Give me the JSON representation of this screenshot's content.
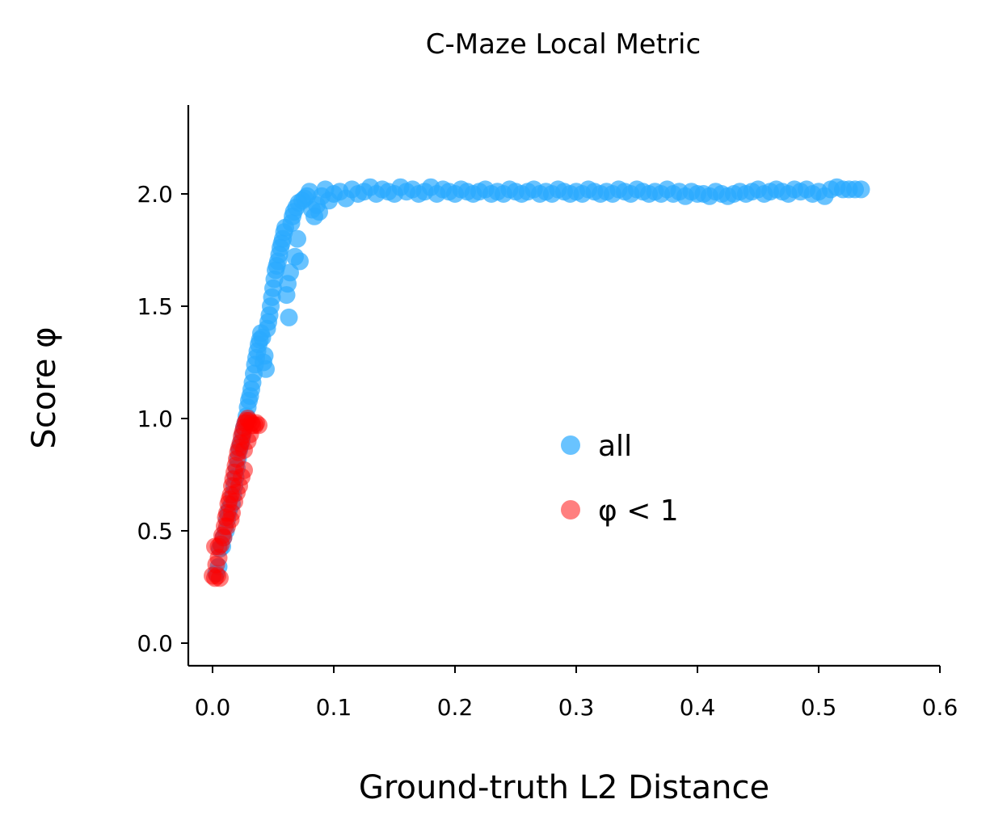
{
  "chart_data": {
    "type": "scatter",
    "title": "C-Maze Local Metric",
    "xlabel": "Ground-truth L2 Distance",
    "ylabel": "Score φ",
    "xlim": [
      -0.02,
      0.6
    ],
    "ylim": [
      -0.1,
      2.4
    ],
    "xticks": [
      "0.0",
      "0.1",
      "0.2",
      "0.3",
      "0.4",
      "0.5",
      "0.6"
    ],
    "yticks": [
      "0.0",
      "0.5",
      "1.0",
      "1.5",
      "2.0"
    ],
    "grid": false,
    "legend_position": "center-right",
    "series": [
      {
        "name": "all",
        "color": "#29aaff",
        "alpha": 0.7,
        "points": [
          [
            0.003,
            0.31
          ],
          [
            0.005,
            0.34
          ],
          [
            0.006,
            0.42
          ],
          [
            0.008,
            0.43
          ],
          [
            0.009,
            0.47
          ],
          [
            0.011,
            0.5
          ],
          [
            0.012,
            0.55
          ],
          [
            0.013,
            0.58
          ],
          [
            0.014,
            0.6
          ],
          [
            0.016,
            0.62
          ],
          [
            0.017,
            0.66
          ],
          [
            0.018,
            0.7
          ],
          [
            0.019,
            0.74
          ],
          [
            0.02,
            0.78
          ],
          [
            0.021,
            0.82
          ],
          [
            0.022,
            0.86
          ],
          [
            0.023,
            0.88
          ],
          [
            0.024,
            0.9
          ],
          [
            0.025,
            0.93
          ],
          [
            0.026,
            0.96
          ],
          [
            0.027,
            0.98
          ],
          [
            0.028,
            1.01
          ],
          [
            0.029,
            1.05
          ],
          [
            0.03,
            1.08
          ],
          [
            0.031,
            1.1
          ],
          [
            0.032,
            1.13
          ],
          [
            0.033,
            1.16
          ],
          [
            0.034,
            1.2
          ],
          [
            0.035,
            1.24
          ],
          [
            0.036,
            1.27
          ],
          [
            0.037,
            1.3
          ],
          [
            0.038,
            1.33
          ],
          [
            0.039,
            1.35
          ],
          [
            0.04,
            1.38
          ],
          [
            0.041,
            1.36
          ],
          [
            0.042,
            1.25
          ],
          [
            0.043,
            1.28
          ],
          [
            0.044,
            1.22
          ],
          [
            0.045,
            1.4
          ],
          [
            0.046,
            1.43
          ],
          [
            0.047,
            1.46
          ],
          [
            0.048,
            1.5
          ],
          [
            0.049,
            1.54
          ],
          [
            0.05,
            1.58
          ],
          [
            0.051,
            1.62
          ],
          [
            0.052,
            1.66
          ],
          [
            0.053,
            1.68
          ],
          [
            0.054,
            1.7
          ],
          [
            0.055,
            1.73
          ],
          [
            0.056,
            1.76
          ],
          [
            0.057,
            1.78
          ],
          [
            0.058,
            1.8
          ],
          [
            0.059,
            1.83
          ],
          [
            0.06,
            1.85
          ],
          [
            0.061,
            1.55
          ],
          [
            0.062,
            1.6
          ],
          [
            0.063,
            1.45
          ],
          [
            0.064,
            1.65
          ],
          [
            0.065,
            1.87
          ],
          [
            0.066,
            1.9
          ],
          [
            0.067,
            1.92
          ],
          [
            0.068,
            1.72
          ],
          [
            0.069,
            1.94
          ],
          [
            0.07,
            1.8
          ],
          [
            0.071,
            1.96
          ],
          [
            0.072,
            1.7
          ],
          [
            0.074,
            1.97
          ],
          [
            0.076,
            1.98
          ],
          [
            0.078,
            1.99
          ],
          [
            0.08,
            2.01
          ],
          [
            0.082,
            1.93
          ],
          [
            0.084,
            1.9
          ],
          [
            0.086,
            1.95
          ],
          [
            0.088,
            1.92
          ],
          [
            0.09,
            1.99
          ],
          [
            0.093,
            2.02
          ],
          [
            0.096,
            1.97
          ],
          [
            0.1,
            2.0
          ],
          [
            0.105,
            2.01
          ],
          [
            0.11,
            1.98
          ],
          [
            0.115,
            2.02
          ],
          [
            0.12,
            2.0
          ],
          [
            0.125,
            2.01
          ],
          [
            0.13,
            2.03
          ],
          [
            0.135,
            2.0
          ],
          [
            0.14,
            2.02
          ],
          [
            0.145,
            2.01
          ],
          [
            0.15,
            2.0
          ],
          [
            0.155,
            2.03
          ],
          [
            0.16,
            2.01
          ],
          [
            0.165,
            2.02
          ],
          [
            0.17,
            2.0
          ],
          [
            0.175,
            2.01
          ],
          [
            0.18,
            2.03
          ],
          [
            0.185,
            2.0
          ],
          [
            0.19,
            2.02
          ],
          [
            0.195,
            2.01
          ],
          [
            0.2,
            2.0
          ],
          [
            0.205,
            2.02
          ],
          [
            0.21,
            2.01
          ],
          [
            0.215,
            2.0
          ],
          [
            0.22,
            2.01
          ],
          [
            0.225,
            2.02
          ],
          [
            0.23,
            2.0
          ],
          [
            0.235,
            2.01
          ],
          [
            0.24,
            2.0
          ],
          [
            0.245,
            2.02
          ],
          [
            0.25,
            2.01
          ],
          [
            0.255,
            2.0
          ],
          [
            0.26,
            2.01
          ],
          [
            0.265,
            2.02
          ],
          [
            0.27,
            2.0
          ],
          [
            0.275,
            2.01
          ],
          [
            0.28,
            2.0
          ],
          [
            0.285,
            2.02
          ],
          [
            0.29,
            2.01
          ],
          [
            0.295,
            2.0
          ],
          [
            0.3,
            2.01
          ],
          [
            0.305,
            2.0
          ],
          [
            0.31,
            2.02
          ],
          [
            0.315,
            2.01
          ],
          [
            0.32,
            2.0
          ],
          [
            0.325,
            2.01
          ],
          [
            0.33,
            2.0
          ],
          [
            0.335,
            2.02
          ],
          [
            0.34,
            2.01
          ],
          [
            0.345,
            2.0
          ],
          [
            0.35,
            2.02
          ],
          [
            0.355,
            2.01
          ],
          [
            0.36,
            2.0
          ],
          [
            0.365,
            2.01
          ],
          [
            0.37,
            2.0
          ],
          [
            0.375,
            2.02
          ],
          [
            0.38,
            2.0
          ],
          [
            0.385,
            2.01
          ],
          [
            0.39,
            1.99
          ],
          [
            0.395,
            2.01
          ],
          [
            0.4,
            2.0
          ],
          [
            0.405,
            2.0
          ],
          [
            0.41,
            1.99
          ],
          [
            0.415,
            2.01
          ],
          [
            0.42,
            2.0
          ],
          [
            0.425,
            1.99
          ],
          [
            0.43,
            2.0
          ],
          [
            0.435,
            2.01
          ],
          [
            0.44,
            2.0
          ],
          [
            0.445,
            2.01
          ],
          [
            0.45,
            2.02
          ],
          [
            0.455,
            2.0
          ],
          [
            0.46,
            2.01
          ],
          [
            0.465,
            2.02
          ],
          [
            0.47,
            2.01
          ],
          [
            0.475,
            2.0
          ],
          [
            0.48,
            2.02
          ],
          [
            0.485,
            2.01
          ],
          [
            0.49,
            2.02
          ],
          [
            0.495,
            2.0
          ],
          [
            0.5,
            2.01
          ],
          [
            0.505,
            1.99
          ],
          [
            0.51,
            2.02
          ],
          [
            0.515,
            2.03
          ],
          [
            0.52,
            2.02
          ],
          [
            0.525,
            2.02
          ],
          [
            0.53,
            2.02
          ],
          [
            0.535,
            2.02
          ]
        ]
      },
      {
        "name": "φ < 1",
        "color": "#ff0000",
        "alpha": 0.5,
        "points": [
          [
            0.0,
            0.3
          ],
          [
            0.002,
            0.29
          ],
          [
            0.004,
            0.3
          ],
          [
            0.006,
            0.29
          ],
          [
            0.003,
            0.35
          ],
          [
            0.005,
            0.38
          ],
          [
            0.002,
            0.43
          ],
          [
            0.005,
            0.43
          ],
          [
            0.007,
            0.44
          ],
          [
            0.009,
            0.47
          ],
          [
            0.01,
            0.52
          ],
          [
            0.011,
            0.56
          ],
          [
            0.012,
            0.58
          ],
          [
            0.013,
            0.62
          ],
          [
            0.014,
            0.64
          ],
          [
            0.015,
            0.66
          ],
          [
            0.016,
            0.7
          ],
          [
            0.017,
            0.73
          ],
          [
            0.018,
            0.76
          ],
          [
            0.019,
            0.79
          ],
          [
            0.02,
            0.82
          ],
          [
            0.021,
            0.85
          ],
          [
            0.022,
            0.87
          ],
          [
            0.023,
            0.89
          ],
          [
            0.024,
            0.92
          ],
          [
            0.025,
            0.94
          ],
          [
            0.026,
            0.96
          ],
          [
            0.027,
            0.98
          ],
          [
            0.028,
            0.99
          ],
          [
            0.029,
            1.0
          ],
          [
            0.03,
            0.99
          ],
          [
            0.032,
            0.98
          ],
          [
            0.033,
            0.97
          ],
          [
            0.035,
            0.97
          ],
          [
            0.036,
            0.98
          ],
          [
            0.038,
            0.97
          ],
          [
            0.026,
            0.77
          ],
          [
            0.024,
            0.74
          ],
          [
            0.022,
            0.7
          ],
          [
            0.02,
            0.67
          ],
          [
            0.018,
            0.63
          ],
          [
            0.016,
            0.58
          ],
          [
            0.015,
            0.55
          ],
          [
            0.012,
            0.52
          ],
          [
            0.008,
            0.48
          ],
          [
            0.026,
            0.86
          ],
          [
            0.029,
            0.9
          ],
          [
            0.031,
            0.93
          ]
        ]
      }
    ]
  }
}
